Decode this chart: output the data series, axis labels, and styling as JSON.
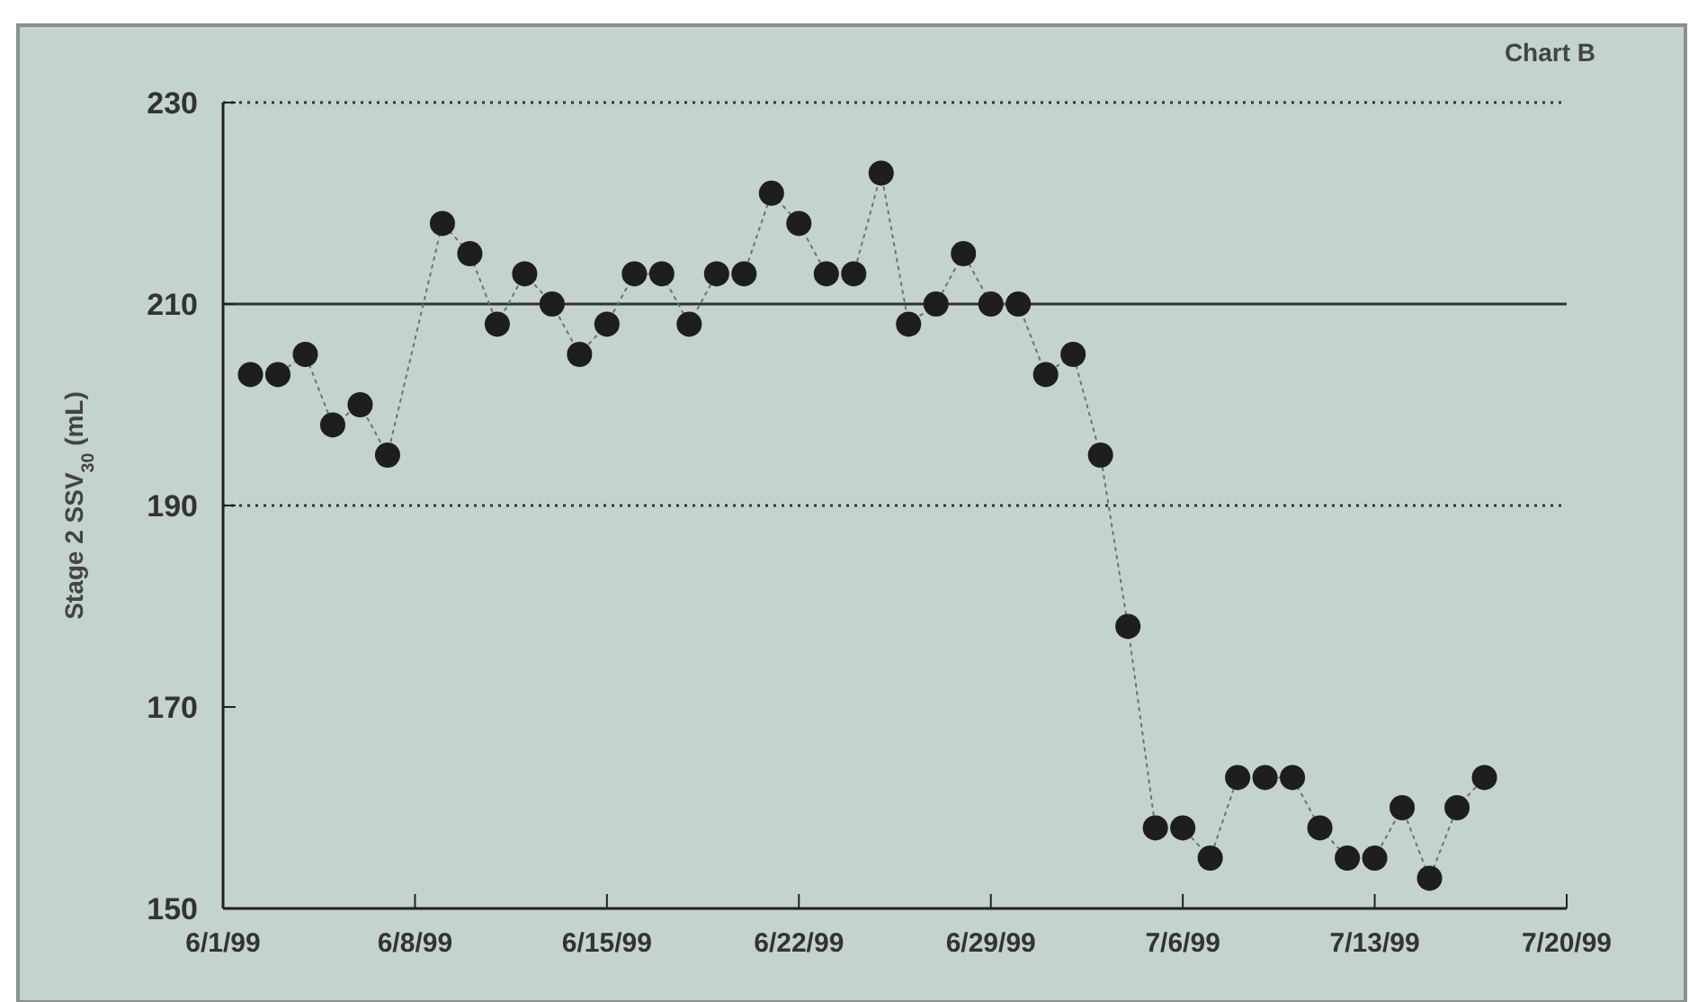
{
  "chart_data": {
    "type": "line",
    "title": "Chart B",
    "ylabel": "Stage 2 SSV$_{30}$ (mL)",
    "x": [
      "1999-06-02",
      "1999-06-03",
      "1999-06-04",
      "1999-06-05",
      "1999-06-06",
      "1999-06-07",
      "1999-06-09",
      "1999-06-10",
      "1999-06-11",
      "1999-06-12",
      "1999-06-13",
      "1999-06-14",
      "1999-06-15",
      "1999-06-16",
      "1999-06-17",
      "1999-06-18",
      "1999-06-19",
      "1999-06-20",
      "1999-06-21",
      "1999-06-22",
      "1999-06-23",
      "1999-06-24",
      "1999-06-25",
      "1999-06-26",
      "1999-06-27",
      "1999-06-28",
      "1999-06-29",
      "1999-06-30",
      "1999-07-01",
      "1999-07-02",
      "1999-07-03",
      "1999-07-04",
      "1999-07-05",
      "1999-07-06",
      "1999-07-07",
      "1999-07-08",
      "1999-07-09",
      "1999-07-10",
      "1999-07-11",
      "1999-07-12",
      "1999-07-13",
      "1999-07-14",
      "1999-07-15",
      "1999-07-16",
      "1999-07-17"
    ],
    "series": [
      {
        "color": "#1e1e1e",
        "values": [
          203,
          203,
          205,
          198,
          200,
          195,
          218,
          215,
          208,
          213,
          210,
          205,
          208,
          213,
          213,
          208,
          213,
          213,
          221,
          218,
          213,
          213,
          223,
          208,
          210,
          215,
          210,
          210,
          203,
          205,
          195,
          178,
          158,
          158,
          155,
          163,
          163,
          163,
          158,
          155,
          155,
          160,
          153,
          160,
          163
        ]
      }
    ],
    "marker": "circle",
    "line_style": "dotted",
    "xlim": [
      "1999-06-01",
      "1999-07-20"
    ],
    "xticks": [
      {
        "value": "1999-06-01",
        "label": "6/1/99"
      },
      {
        "value": "1999-06-08",
        "label": "6/8/99"
      },
      {
        "value": "1999-06-15",
        "label": "6/15/99"
      },
      {
        "value": "1999-06-22",
        "label": "6/22/99"
      },
      {
        "value": "1999-06-29",
        "label": "6/29/99"
      },
      {
        "value": "1999-07-06",
        "label": "7/6/99"
      },
      {
        "value": "1999-07-13",
        "label": "7/13/99"
      },
      {
        "value": "1999-07-20",
        "label": "7/20/99"
      }
    ],
    "ylim": [
      150,
      230
    ],
    "yticks": [
      150,
      170,
      190,
      210,
      230
    ],
    "ref_lines": [
      {
        "axis": "y",
        "value": 230,
        "line_style": "dotted",
        "color": "#333333"
      },
      {
        "axis": "y",
        "value": 210,
        "line_style": "solid",
        "color": "#333333"
      },
      {
        "axis": "y",
        "value": 190,
        "line_style": "dotted",
        "color": "#333333"
      }
    ],
    "grid": false
  }
}
